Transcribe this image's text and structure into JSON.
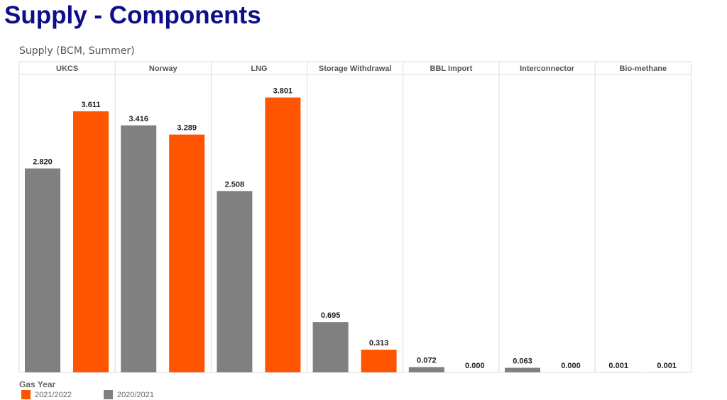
{
  "slide_title": "Supply - Components",
  "chart_data": {
    "type": "bar",
    "title": "Supply (BCM, Summer)",
    "categories": [
      "UKCS",
      "Norway",
      "LNG",
      "Storage Withdrawal",
      "BBL Import",
      "Interconnector",
      "Bio-methane"
    ],
    "series": [
      {
        "name": "2020/2021",
        "color": "#808080",
        "values": [
          2.82,
          3.416,
          2.508,
          0.695,
          0.072,
          0.063,
          0.001
        ]
      },
      {
        "name": "2021/2022",
        "color": "#ff5500",
        "values": [
          3.611,
          3.289,
          3.801,
          0.313,
          0.0,
          0.0,
          0.001
        ]
      }
    ],
    "ylim": [
      0,
      4.12
    ],
    "legend_title": "Gas Year",
    "legend_position": "bottom-left"
  }
}
